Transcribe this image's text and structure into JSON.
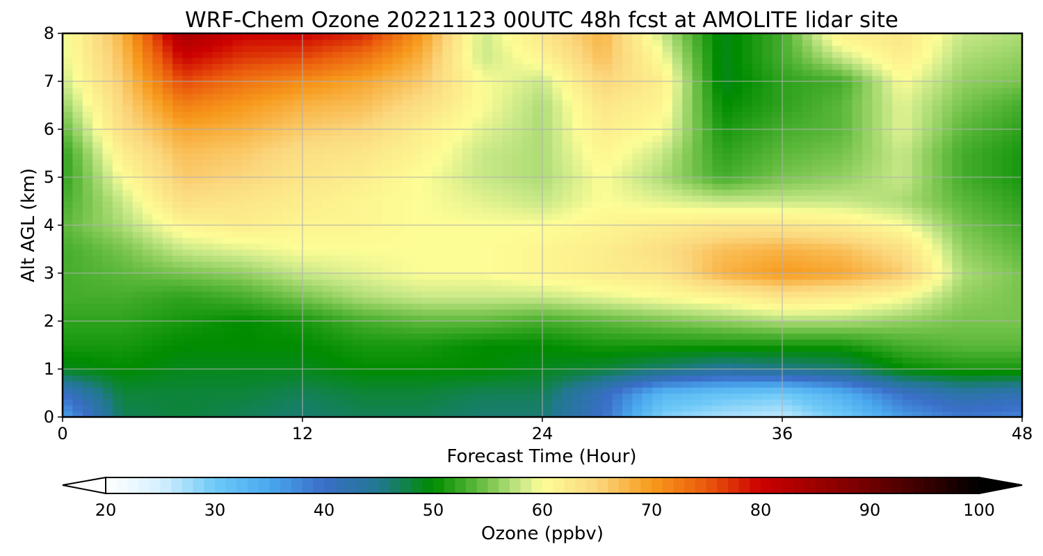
{
  "chart_data": {
    "type": "heatmap",
    "title": "WRF-Chem Ozone  20221123 00UTC 48h fcst at AMOLITE lidar site",
    "xlabel": "Forecast Time (Hour)",
    "ylabel": "Alt AGL (km)",
    "xlim": [
      0,
      48
    ],
    "ylim": [
      0,
      8
    ],
    "xticks": [
      0,
      12,
      24,
      36,
      48
    ],
    "yticks": [
      0,
      1,
      2,
      3,
      4,
      5,
      6,
      7,
      8
    ],
    "xtick_labels": [
      "0",
      "12",
      "24",
      "36",
      "48"
    ],
    "ytick_labels": [
      "0",
      "1",
      "2",
      "3",
      "4",
      "5",
      "6",
      "7",
      "8"
    ],
    "grid": true,
    "colorbar": {
      "label": "Ozone  (ppbv)",
      "orientation": "horizontal",
      "placement": "bottom",
      "range": [
        20,
        100
      ],
      "extend": "both",
      "ticks": [
        20,
        30,
        40,
        50,
        60,
        70,
        80,
        90,
        100
      ],
      "tick_labels": [
        "20",
        "30",
        "40",
        "50",
        "60",
        "70",
        "80",
        "90",
        "100"
      ],
      "color_stops": [
        {
          "value": 20,
          "color": "#ffffff"
        },
        {
          "value": 25,
          "color": "#d6f0ff"
        },
        {
          "value": 30,
          "color": "#6ec9f7"
        },
        {
          "value": 35,
          "color": "#4aa8ee"
        },
        {
          "value": 40,
          "color": "#3a6ec8"
        },
        {
          "value": 45,
          "color": "#217890"
        },
        {
          "value": 50,
          "color": "#008c00"
        },
        {
          "value": 54,
          "color": "#5cb83a"
        },
        {
          "value": 58,
          "color": "#c8e888"
        },
        {
          "value": 60,
          "color": "#fdfd96"
        },
        {
          "value": 65,
          "color": "#fbd77e"
        },
        {
          "value": 70,
          "color": "#f79a1c"
        },
        {
          "value": 75,
          "color": "#ea5a0c"
        },
        {
          "value": 80,
          "color": "#cc0000"
        },
        {
          "value": 90,
          "color": "#700000"
        },
        {
          "value": 100,
          "color": "#000000"
        }
      ]
    },
    "grid_x_hours": [
      0,
      3,
      6,
      9,
      12,
      15,
      18,
      21,
      24,
      27,
      30,
      33,
      36,
      39,
      42,
      45,
      48
    ],
    "grid_y_km": [
      0,
      0.5,
      1,
      1.5,
      2,
      2.5,
      3,
      3.5,
      4,
      4.5,
      5,
      5.5,
      6,
      6.5,
      7,
      7.5,
      8
    ],
    "values_ppbv": [
      [
        35,
        47,
        48,
        47,
        46,
        47,
        47,
        46,
        46,
        40,
        29,
        27,
        26,
        30,
        36,
        39,
        38
      ],
      [
        40,
        48,
        48,
        48,
        47,
        48,
        48,
        47,
        47,
        41,
        33,
        31,
        30,
        34,
        40,
        43,
        42
      ],
      [
        49,
        50,
        49,
        49,
        49,
        50,
        50,
        50,
        49,
        48,
        46,
        44,
        45,
        46,
        50,
        51,
        51
      ],
      [
        51,
        51,
        50,
        50,
        50,
        51,
        51,
        50,
        50,
        51,
        51,
        51,
        51,
        51,
        53,
        54,
        54
      ],
      [
        52,
        52,
        51,
        50,
        51,
        53,
        54,
        54,
        53,
        54,
        55,
        56,
        57,
        57,
        56,
        55,
        55
      ],
      [
        53,
        53,
        52,
        53,
        55,
        57,
        58,
        58,
        58,
        59,
        60,
        61,
        63,
        62,
        60,
        56,
        55
      ],
      [
        53,
        54,
        55,
        56,
        58,
        59,
        60,
        60,
        61,
        62,
        63,
        68,
        70,
        69,
        66,
        57,
        55
      ],
      [
        53,
        55,
        58,
        59,
        60,
        60,
        60,
        60,
        61,
        62,
        64,
        67,
        68,
        67,
        64,
        56,
        54
      ],
      [
        54,
        57,
        61,
        62,
        61,
        61,
        60,
        60,
        60,
        61,
        62,
        63,
        63,
        62,
        60,
        55,
        53
      ],
      [
        53,
        58,
        64,
        63,
        62,
        61,
        60,
        59,
        58,
        60,
        59,
        58,
        58,
        58,
        57,
        54,
        52
      ],
      [
        52,
        60,
        66,
        65,
        63,
        62,
        60,
        58,
        57,
        60,
        57,
        53,
        55,
        56,
        58,
        53,
        51
      ],
      [
        52,
        62,
        67,
        66,
        64,
        63,
        61,
        58,
        57,
        61,
        58,
        52,
        54,
        55,
        58,
        53,
        51
      ],
      [
        54,
        64,
        69,
        68,
        66,
        65,
        62,
        59,
        57,
        62,
        60,
        51,
        53,
        54,
        59,
        54,
        52
      ],
      [
        56,
        65,
        72,
        70,
        68,
        67,
        64,
        60,
        57,
        63,
        61,
        50,
        52,
        54,
        59,
        55,
        53
      ],
      [
        58,
        66,
        76,
        73,
        71,
        69,
        66,
        60,
        58,
        65,
        62,
        49,
        52,
        53,
        60,
        56,
        55
      ],
      [
        59,
        67,
        80,
        77,
        76,
        73,
        68,
        58,
        61,
        67,
        60,
        49,
        53,
        58,
        62,
        57,
        56
      ],
      [
        59,
        68,
        84,
        80,
        80,
        78,
        70,
        58,
        63,
        68,
        58,
        49,
        53,
        62,
        63,
        58,
        57
      ]
    ]
  }
}
